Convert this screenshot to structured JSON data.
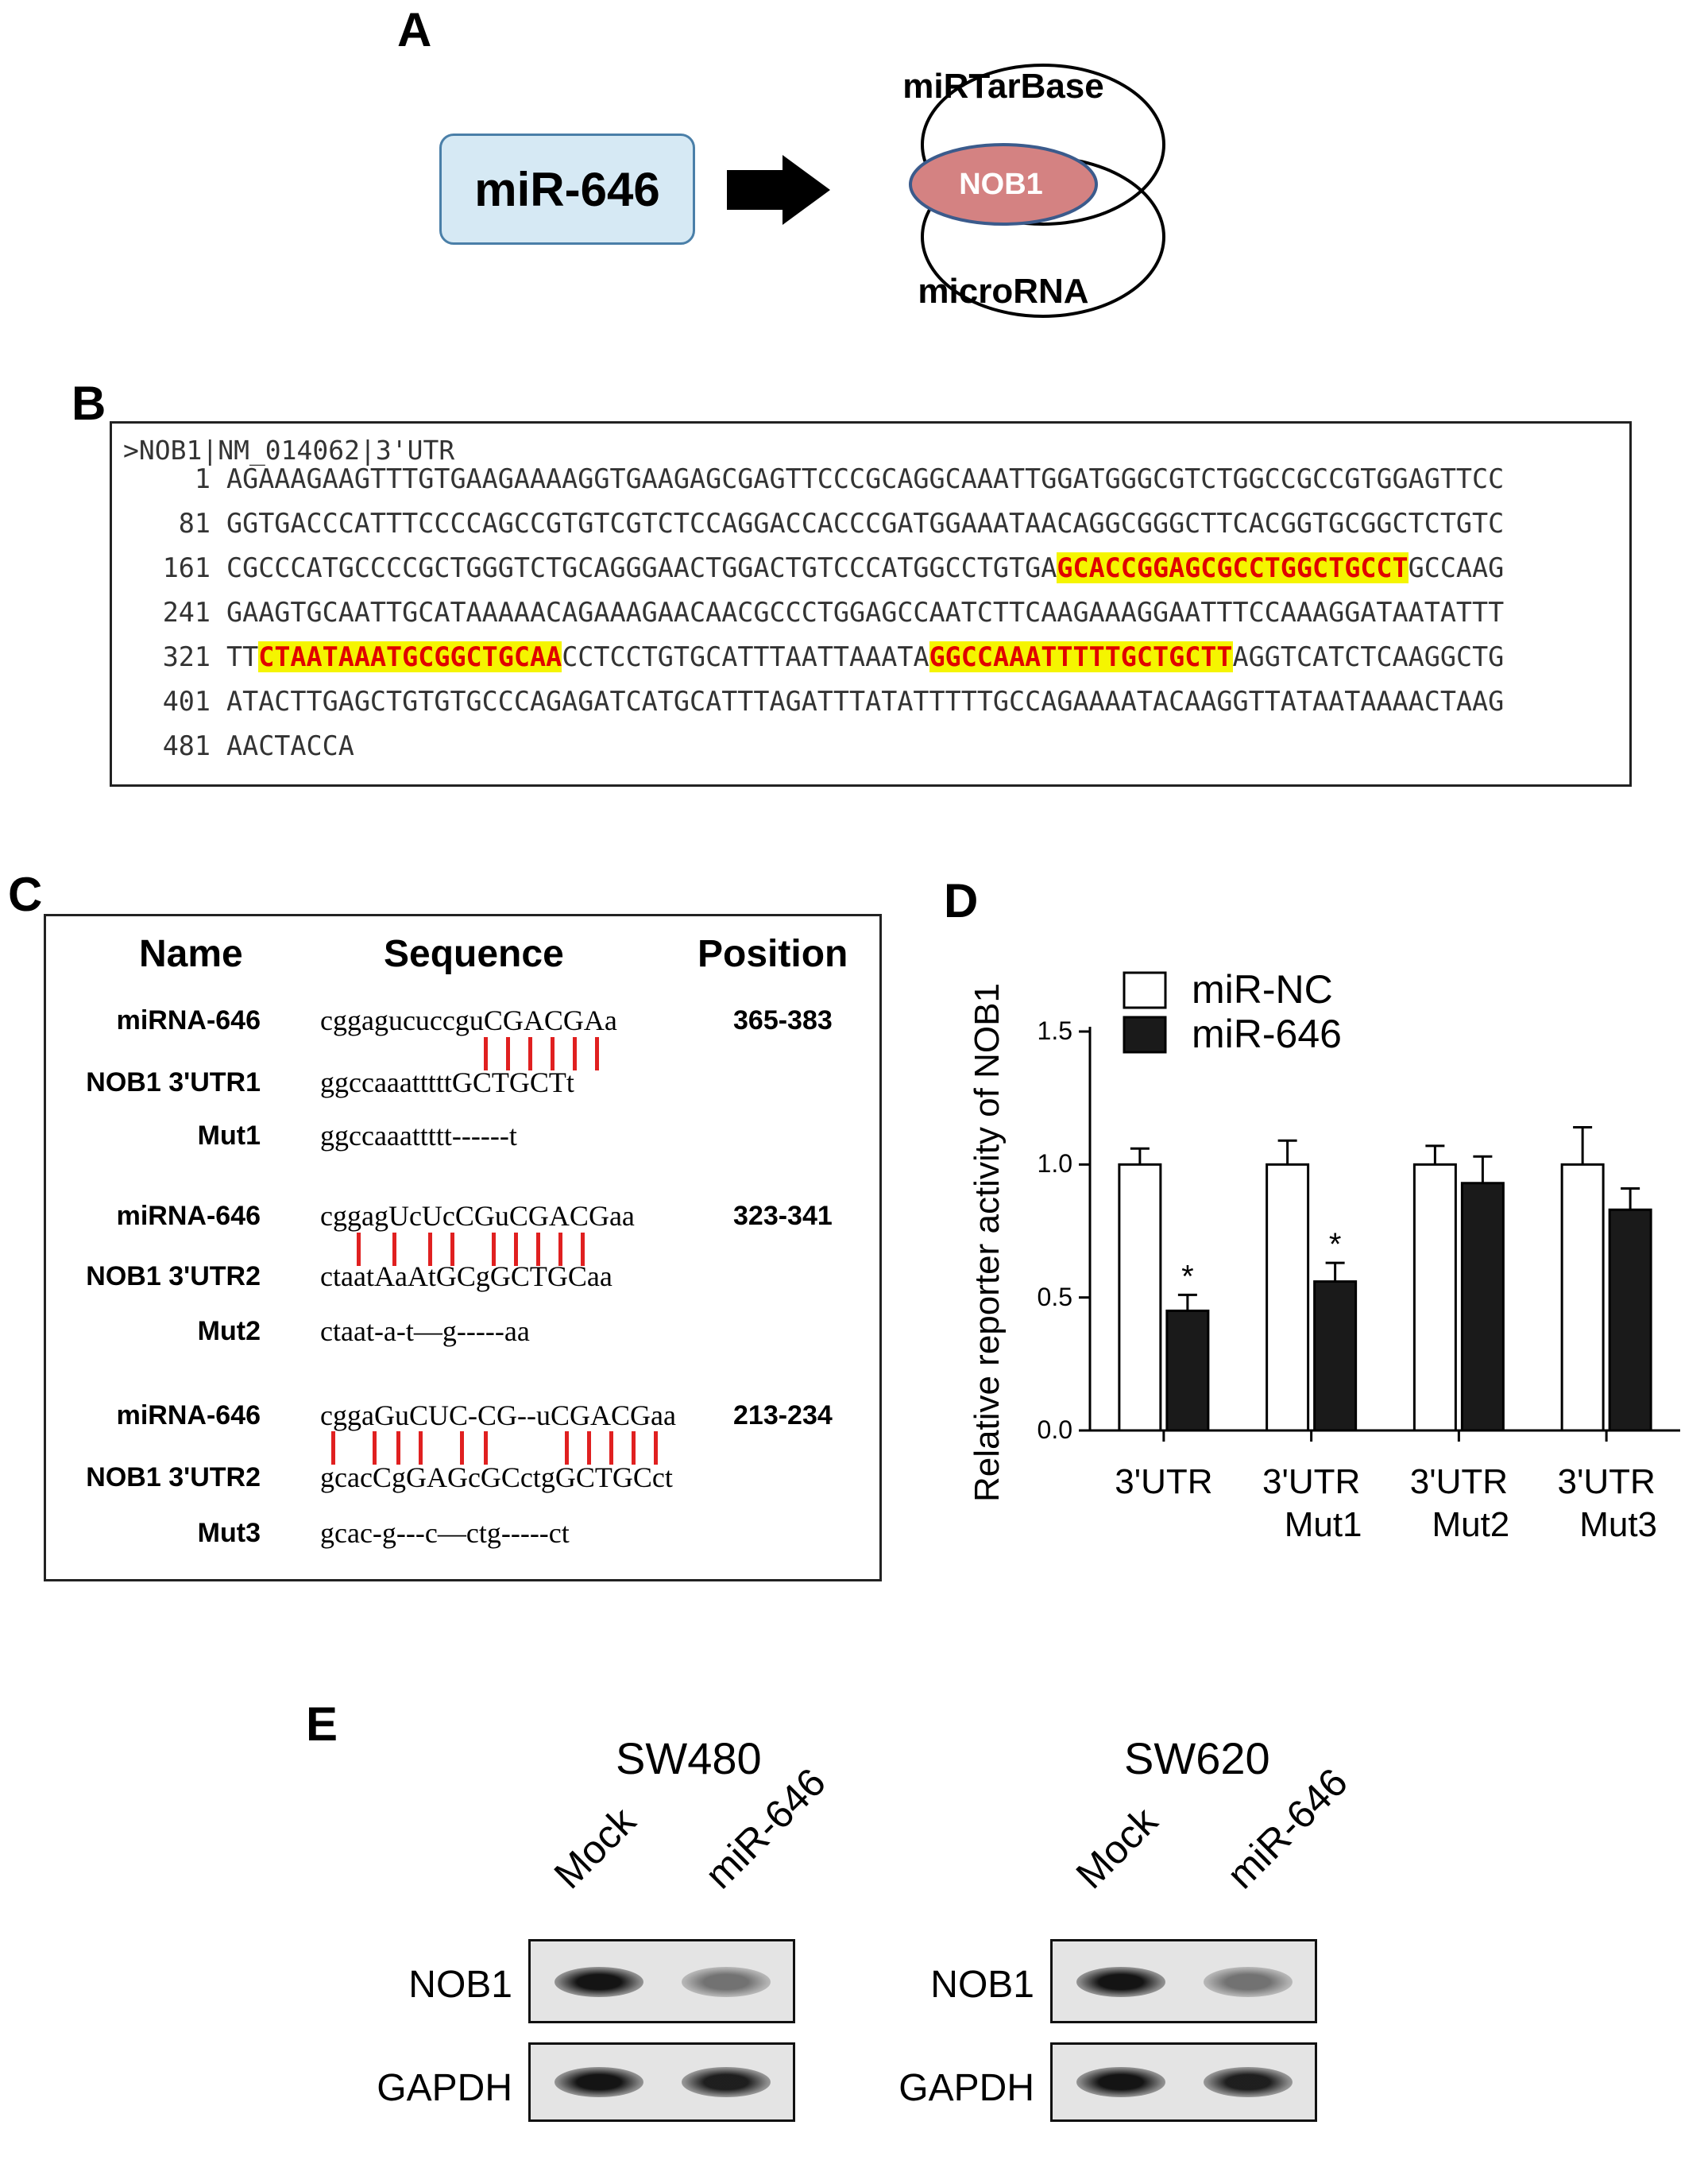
{
  "panels": {
    "a": "A",
    "b": "B",
    "c": "C",
    "d": "D",
    "e": "E"
  },
  "panel_a": {
    "mirna": "miR-646",
    "db_top": "miRTarBase",
    "db_bottom": "microRNA",
    "target": "NOB1"
  },
  "panel_b": {
    "header": ">NOB1|NM_014062|3'UTR",
    "rows": [
      {
        "num": "1",
        "pre": "AGAAAGAAGTTTGTGAAGAAAAGGTGAAGAGCGAGTTCCCGCAGGCAAATTGGATGGGCGTCTGGCCGCCGTGGAGTTCC",
        "hl1": "",
        "mid": "",
        "hl2": "",
        "post": ""
      },
      {
        "num": "81",
        "pre": "GGTGACCCATTTCCCCAGCCGTGTCGTCTCCAGGACCACCCGATGGAAATAACAGGCGGGCTTCACGGTGCGGCTCTGTC",
        "hl1": "",
        "mid": "",
        "hl2": "",
        "post": ""
      },
      {
        "num": "161",
        "pre": "CGCCCATGCCCCGCTGGGTCTGCAGGGAACTGGACTGTCCCATGGCCTGTGA",
        "hl1": "GCACCGGAGCGCCTGGCTGCCT",
        "mid": "GCCAAG",
        "hl2": "",
        "post": ""
      },
      {
        "num": "241",
        "pre": "GAAGTGCAATTGCATAAAAACAGAAAGAACAACGCCCTGGAGCCAATCTTCAAGAAAGGAATTTCCAAAGGATAATATTT",
        "hl1": "",
        "mid": "",
        "hl2": "",
        "post": ""
      },
      {
        "num": "321",
        "pre": "TT",
        "hl1": "CTAATAAATGCGGCTGCAA",
        "mid": "CCTCCTGTGCATTTAATTAAATA",
        "hl2": "GGCCAAATTTTTGCTGCTT",
        "post": "AGGTCATCTCAAGGCTG"
      },
      {
        "num": "401",
        "pre": "ATACTTGAGCTGTGTGCCCAGAGATCATGCATTTAGATTTATATTTTTGCCAGAAAATACAAGGTTATAATAAAACTAAG",
        "hl1": "",
        "mid": "",
        "hl2": "",
        "post": ""
      },
      {
        "num": "481",
        "pre": "AACTACCA",
        "hl1": "",
        "mid": "",
        "hl2": "",
        "post": ""
      }
    ]
  },
  "panel_c": {
    "headers": {
      "name": "Name",
      "sequence": "Sequence",
      "position": "Position"
    },
    "rows": [
      {
        "name": "miRNA-646",
        "seq": "cggagucuccguCGACGAa",
        "pos": "365-383"
      },
      {
        "name": "NOB1 3'UTR1",
        "seq": "ggccaaatttttGCTGCTt",
        "pos": ""
      },
      {
        "name": "Mut1",
        "seq": "ggccaaattttt------t",
        "pos": ""
      },
      {
        "name": "miRNA-646",
        "seq": "cggagUcUcCGuCGACGaa",
        "pos": "323-341"
      },
      {
        "name": "NOB1 3'UTR2",
        "seq": "ctaatAaAtGCgGCTGCaa",
        "pos": ""
      },
      {
        "name": "Mut2",
        "seq": "ctaat-a-t—g-----aa",
        "pos": ""
      },
      {
        "name": "miRNA-646",
        "seq": "cggaGuCUC-CG--uCGACGaa",
        "pos": "213-234"
      },
      {
        "name": "NOB1 3'UTR2",
        "seq": "gcacCgGAGcGCctgGCTGCct",
        "pos": ""
      },
      {
        "name": "Mut3",
        "seq": "gcac-g---c—ctg-----ct",
        "pos": ""
      }
    ]
  },
  "chart_data": {
    "type": "bar",
    "categories": [
      "3'UTR",
      "3'UTR Mut1",
      "3'UTR Mut2",
      "3'UTR Mut3"
    ],
    "category_lines": [
      [
        "3'UTR",
        ""
      ],
      [
        "3'UTR",
        "Mut1"
      ],
      [
        "3'UTR",
        "Mut2"
      ],
      [
        "3'UTR",
        "Mut3"
      ]
    ],
    "series": [
      {
        "name": "miR-NC",
        "values": [
          1.0,
          1.0,
          1.0,
          1.0
        ],
        "errors": [
          0.06,
          0.09,
          0.07,
          0.14
        ],
        "color": "#ffffff"
      },
      {
        "name": "miR-646",
        "values": [
          0.45,
          0.56,
          0.93,
          0.83
        ],
        "errors": [
          0.06,
          0.07,
          0.1,
          0.08
        ],
        "color": "#1a1a1a"
      }
    ],
    "significance": [
      "*",
      "*",
      "",
      ""
    ],
    "ylabel": "Relative reporter activity of NOB1",
    "ylim": [
      0,
      1.5
    ],
    "yticks": [
      "0.0",
      "0.5",
      "1.0",
      "1.5"
    ],
    "legend_position": "top-left"
  },
  "panel_e": {
    "blots": [
      {
        "cell": "SW480",
        "lanes": [
          "Mock",
          "miR-646"
        ]
      },
      {
        "cell": "SW620",
        "lanes": [
          "Mock",
          "miR-646"
        ]
      }
    ],
    "rows": [
      "NOB1",
      "GAPDH"
    ]
  }
}
